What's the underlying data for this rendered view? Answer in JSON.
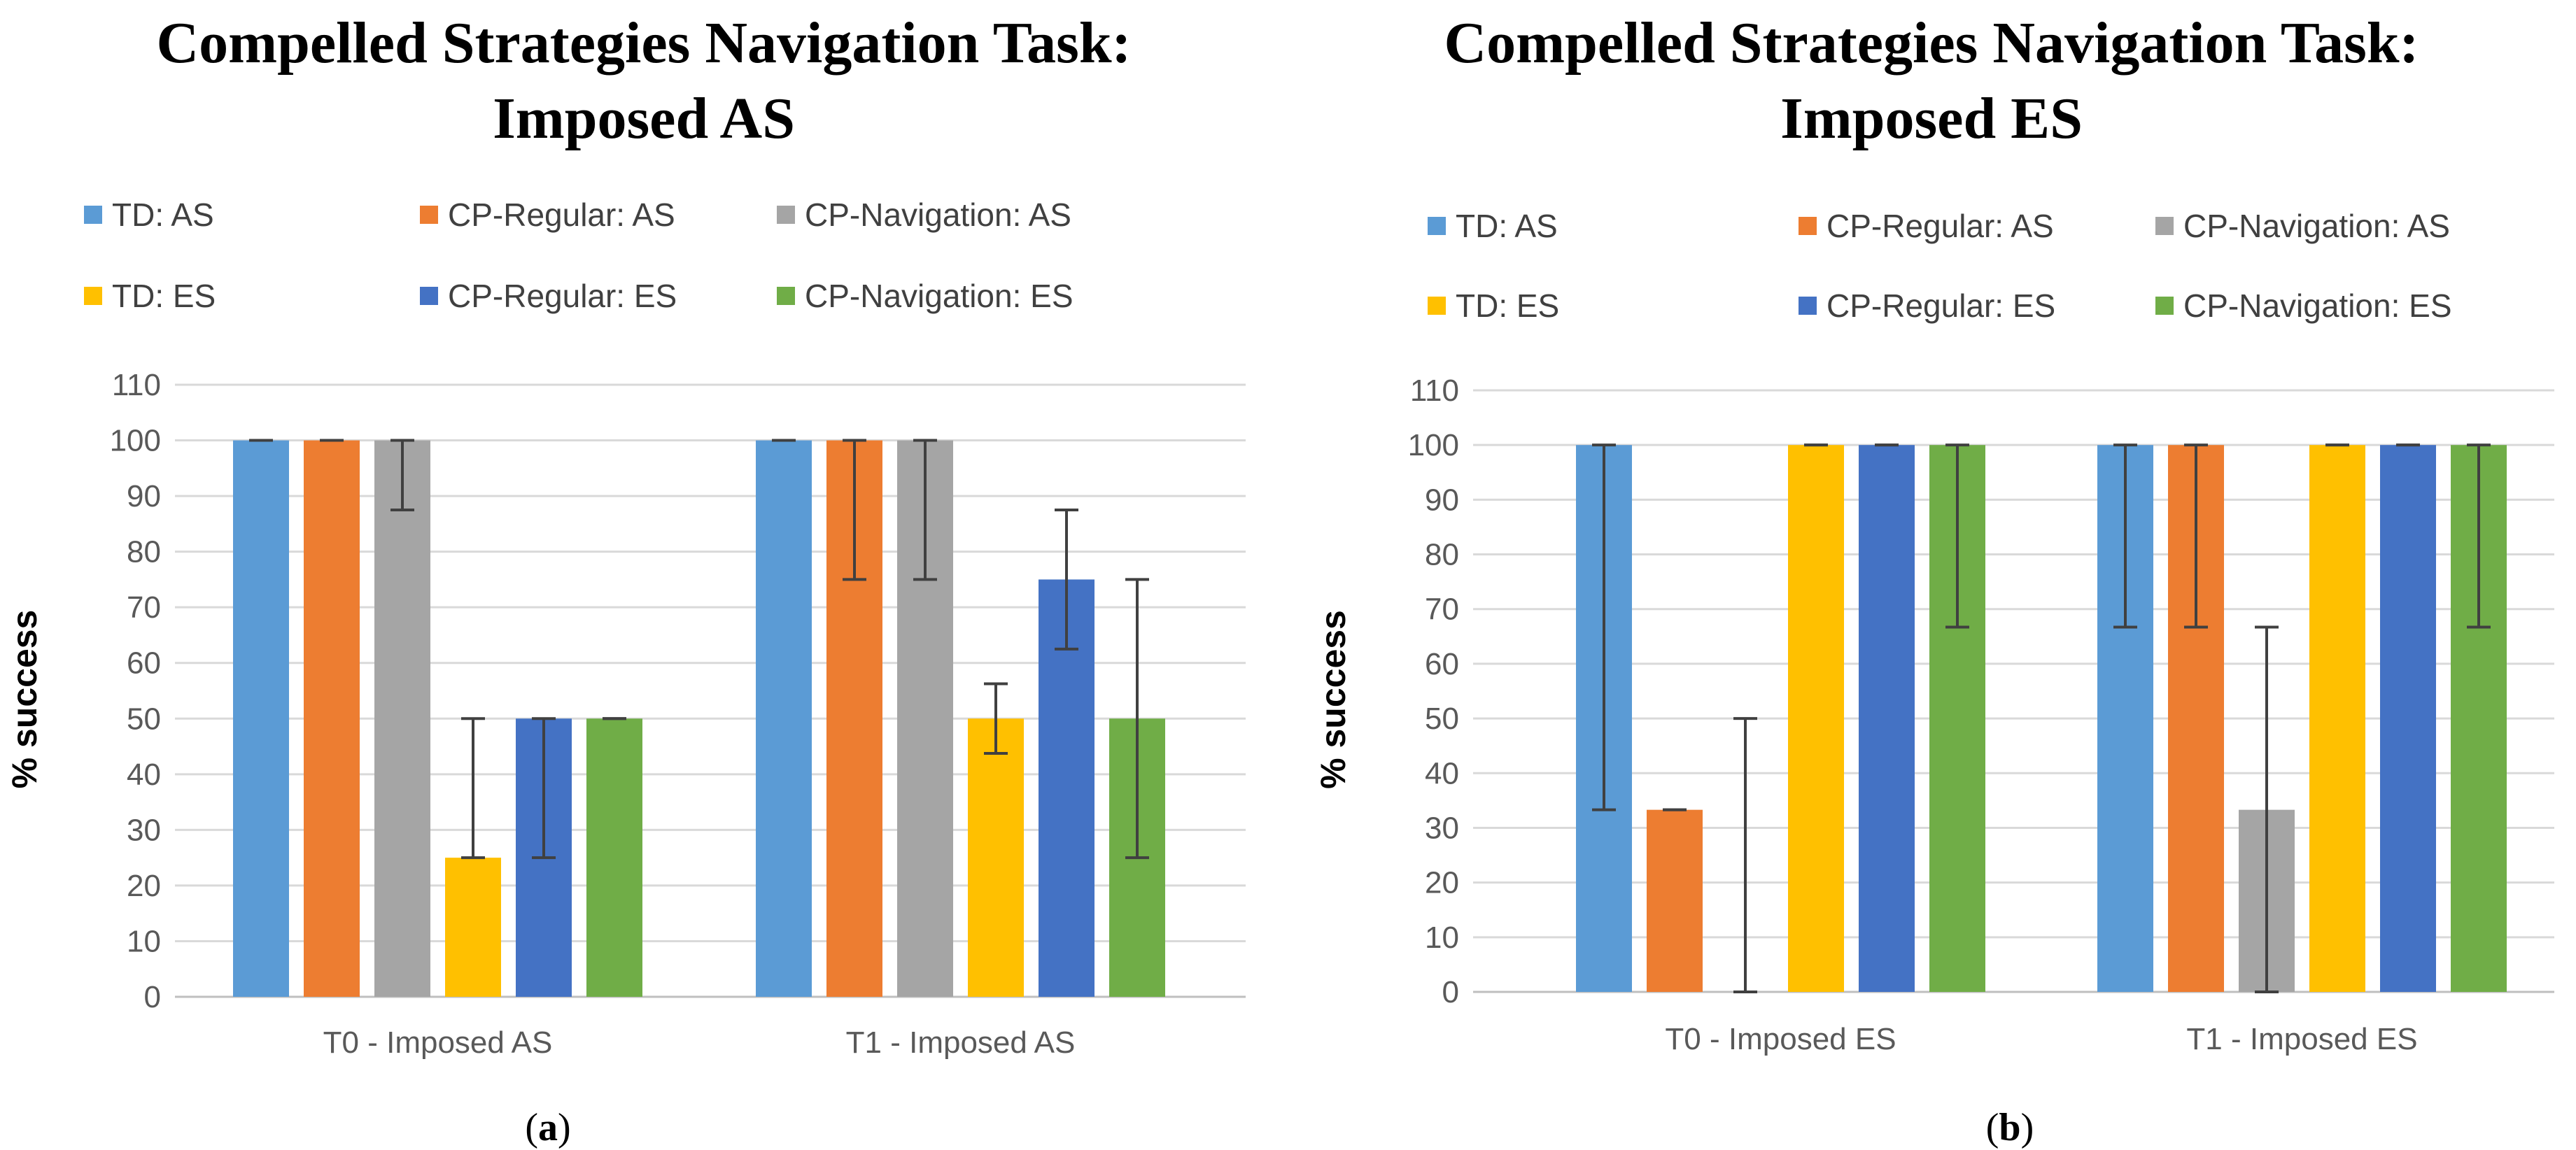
{
  "chart_data": [
    {
      "type": "bar",
      "title_lines": [
        "Compelled Strategies Navigation Task:",
        "Imposed AS"
      ],
      "caption": {
        "open": "(",
        "letter": "a",
        "close": ")"
      },
      "ylabel": "% success",
      "xlabel": "",
      "ylim": [
        0,
        110
      ],
      "yticks": [
        "0",
        "10",
        "20",
        "30",
        "40",
        "50",
        "60",
        "70",
        "80",
        "90",
        "100",
        "110"
      ],
      "grid": true,
      "legend_position": "top",
      "categories": [
        "T0 - Imposed AS",
        "T1 - Imposed AS"
      ],
      "series": [
        {
          "name": "TD: AS",
          "color": "#5B9BD5",
          "values": [
            100,
            100
          ],
          "err_low": [
            100,
            100
          ],
          "err_high": [
            100,
            100
          ]
        },
        {
          "name": "CP-Regular: AS",
          "color": "#ED7D31",
          "values": [
            100,
            100
          ],
          "err_low": [
            100,
            75
          ],
          "err_high": [
            100,
            100
          ]
        },
        {
          "name": "CP-Navigation: AS",
          "color": "#A5A5A5",
          "values": [
            100,
            100
          ],
          "err_low": [
            87.5,
            75
          ],
          "err_high": [
            100,
            100
          ]
        },
        {
          "name": "TD: ES",
          "color": "#FFC000",
          "values": [
            25,
            50
          ],
          "err_low": [
            25,
            43.75
          ],
          "err_high": [
            50,
            56.25
          ]
        },
        {
          "name": "CP-Regular: ES",
          "color": "#4472C4",
          "values": [
            50,
            75
          ],
          "err_low": [
            25,
            62.5
          ],
          "err_high": [
            50,
            87.5
          ]
        },
        {
          "name": "CP-Navigation: ES",
          "color": "#70AD47",
          "values": [
            50,
            50
          ],
          "err_low": [
            50,
            25
          ],
          "err_high": [
            50,
            75
          ]
        }
      ]
    },
    {
      "type": "bar",
      "title_lines": [
        "Compelled Strategies Navigation Task:",
        "Imposed ES"
      ],
      "caption": {
        "open": "(",
        "letter": "b",
        "close": ")"
      },
      "ylabel": "% success",
      "xlabel": "",
      "ylim": [
        0,
        110
      ],
      "yticks": [
        "0",
        "10",
        "20",
        "30",
        "40",
        "50",
        "60",
        "70",
        "80",
        "90",
        "100",
        "110"
      ],
      "grid": true,
      "legend_position": "top",
      "categories": [
        "T0 - Imposed ES",
        "T1 - Imposed ES"
      ],
      "series": [
        {
          "name": "TD: AS",
          "color": "#5B9BD5",
          "values": [
            100,
            100
          ],
          "err_low": [
            33.3,
            66.7
          ],
          "err_high": [
            100,
            100
          ]
        },
        {
          "name": "CP-Regular: AS",
          "color": "#ED7D31",
          "values": [
            33.3,
            100
          ],
          "err_low": [
            33.3,
            66.7
          ],
          "err_high": [
            33.3,
            100
          ]
        },
        {
          "name": "CP-Navigation: AS",
          "color": "#A5A5A5",
          "values": [
            0,
            33.3
          ],
          "err_low": [
            0,
            0
          ],
          "err_high": [
            50,
            66.7
          ]
        },
        {
          "name": "TD: ES",
          "color": "#FFC000",
          "values": [
            100,
            100
          ],
          "err_low": [
            100,
            100
          ],
          "err_high": [
            100,
            100
          ]
        },
        {
          "name": "CP-Regular: ES",
          "color": "#4472C4",
          "values": [
            100,
            100
          ],
          "err_low": [
            100,
            100
          ],
          "err_high": [
            100,
            100
          ]
        },
        {
          "name": "CP-Navigation: ES",
          "color": "#70AD47",
          "values": [
            100,
            100
          ],
          "err_low": [
            66.7,
            66.7
          ],
          "err_high": [
            100,
            100
          ]
        }
      ]
    }
  ]
}
